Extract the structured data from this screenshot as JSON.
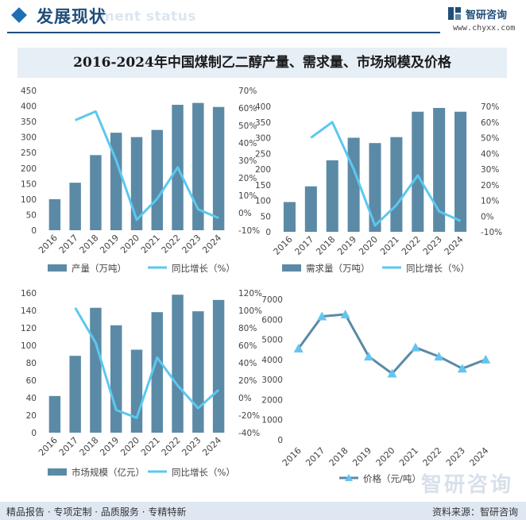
{
  "header": {
    "title": "发展现状",
    "subtitle": "ment status",
    "brand_name": "智研咨询",
    "brand_url": "www.chyxx.com"
  },
  "title": "2016-2024年中国煤制乙二醇产量、需求量、市场规模及价格",
  "footer": {
    "left": "精品报告 · 专项定制 · 品质服务 · 专精特新",
    "right": "资料来源：智研咨询",
    "watermark": "智研咨询"
  },
  "colors": {
    "bar": "#5b8aa6",
    "line": "#5bc8ef",
    "price": "#5b8aa6",
    "price_marker": "#63c5ef"
  },
  "chart_data": [
    {
      "type": "bar",
      "categories": [
        "2016",
        "2017",
        "2018",
        "2019",
        "2020",
        "2021",
        "2022",
        "2023",
        "2024"
      ],
      "series": [
        {
          "name": "产量（万吨）",
          "type": "bar",
          "axis": "left",
          "values": [
            100,
            153,
            242,
            314,
            300,
            323,
            404,
            410,
            397
          ]
        },
        {
          "name": "同比增长（%）",
          "type": "line",
          "axis": "right",
          "values": [
            null,
            53,
            58,
            30,
            -4,
            8,
            26,
            2,
            -3
          ]
        }
      ],
      "yleft": {
        "min": 0,
        "max": 450,
        "step": 50
      },
      "yright": {
        "min": -10,
        "max": 70,
        "step": 10,
        "suffix": "%"
      }
    },
    {
      "type": "bar",
      "categories": [
        "2016",
        "2017",
        "2018",
        "2019",
        "2020",
        "2021",
        "2022",
        "2023",
        "2024"
      ],
      "series": [
        {
          "name": "需求量（万吨）",
          "type": "bar",
          "axis": "left",
          "values": [
            95,
            145,
            228,
            300,
            283,
            302,
            383,
            395,
            383
          ]
        },
        {
          "name": "同比增长（%）",
          "type": "line",
          "axis": "right",
          "values": [
            null,
            50,
            60,
            30,
            -6,
            7,
            26,
            3,
            -3
          ]
        }
      ],
      "yleft": {
        "min": 0,
        "max": 400,
        "step": 50
      },
      "yright": {
        "min": -10,
        "max": 70,
        "step": 10,
        "suffix": "%"
      }
    },
    {
      "type": "bar",
      "categories": [
        "2016",
        "2017",
        "2018",
        "2019",
        "2020",
        "2021",
        "2022",
        "2023",
        "2024"
      ],
      "series": [
        {
          "name": "市场规模（亿元）",
          "type": "bar",
          "axis": "left",
          "values": [
            42,
            88,
            143,
            123,
            95,
            138,
            158,
            139,
            152
          ]
        },
        {
          "name": "同比增长（%）",
          "type": "line",
          "axis": "right",
          "values": [
            null,
            103,
            63,
            -14,
            -23,
            46,
            14,
            -12,
            9
          ]
        }
      ],
      "yleft": {
        "min": 0,
        "max": 160,
        "step": 20
      },
      "yright": {
        "min": -40,
        "max": 120,
        "step": 20,
        "suffix": "%"
      }
    },
    {
      "type": "line",
      "categories": [
        "2016",
        "2017",
        "2018",
        "2019",
        "2020",
        "2021",
        "2022",
        "2023",
        "2024"
      ],
      "series": [
        {
          "name": "价格（元/吨）",
          "values": [
            4550,
            6150,
            6250,
            4150,
            3300,
            4600,
            4150,
            3550,
            4000
          ]
        }
      ],
      "yleft": {
        "min": 0,
        "max": 7000,
        "step": 1000
      }
    }
  ]
}
